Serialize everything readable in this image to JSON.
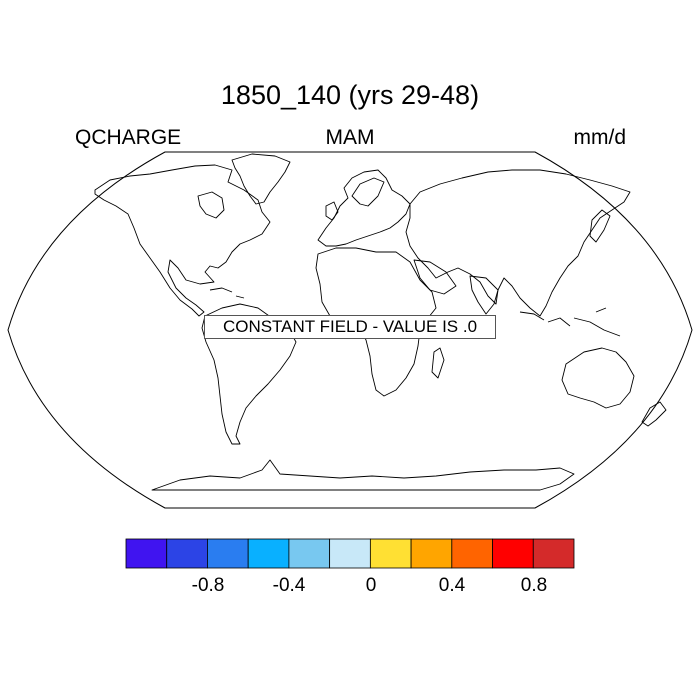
{
  "title": "1850_140 (yrs 29-48)",
  "subtitle": {
    "left": "QCHARGE",
    "center": "MAM",
    "right": "mm/d"
  },
  "field_label": "CONSTANT FIELD - VALUE IS .0",
  "projection": "robinson",
  "colorbar": {
    "colors": [
      "#4014f0",
      "#2c44e6",
      "#2a7df0",
      "#09b0ff",
      "#78c8f0",
      "#c8e8f8",
      "#ffe033",
      "#ffa500",
      "#ff6400",
      "#ff0000",
      "#d42a2a"
    ],
    "tick_labels": [
      "-0.8",
      "-0.4",
      "0",
      "0.4",
      "0.8"
    ]
  }
}
